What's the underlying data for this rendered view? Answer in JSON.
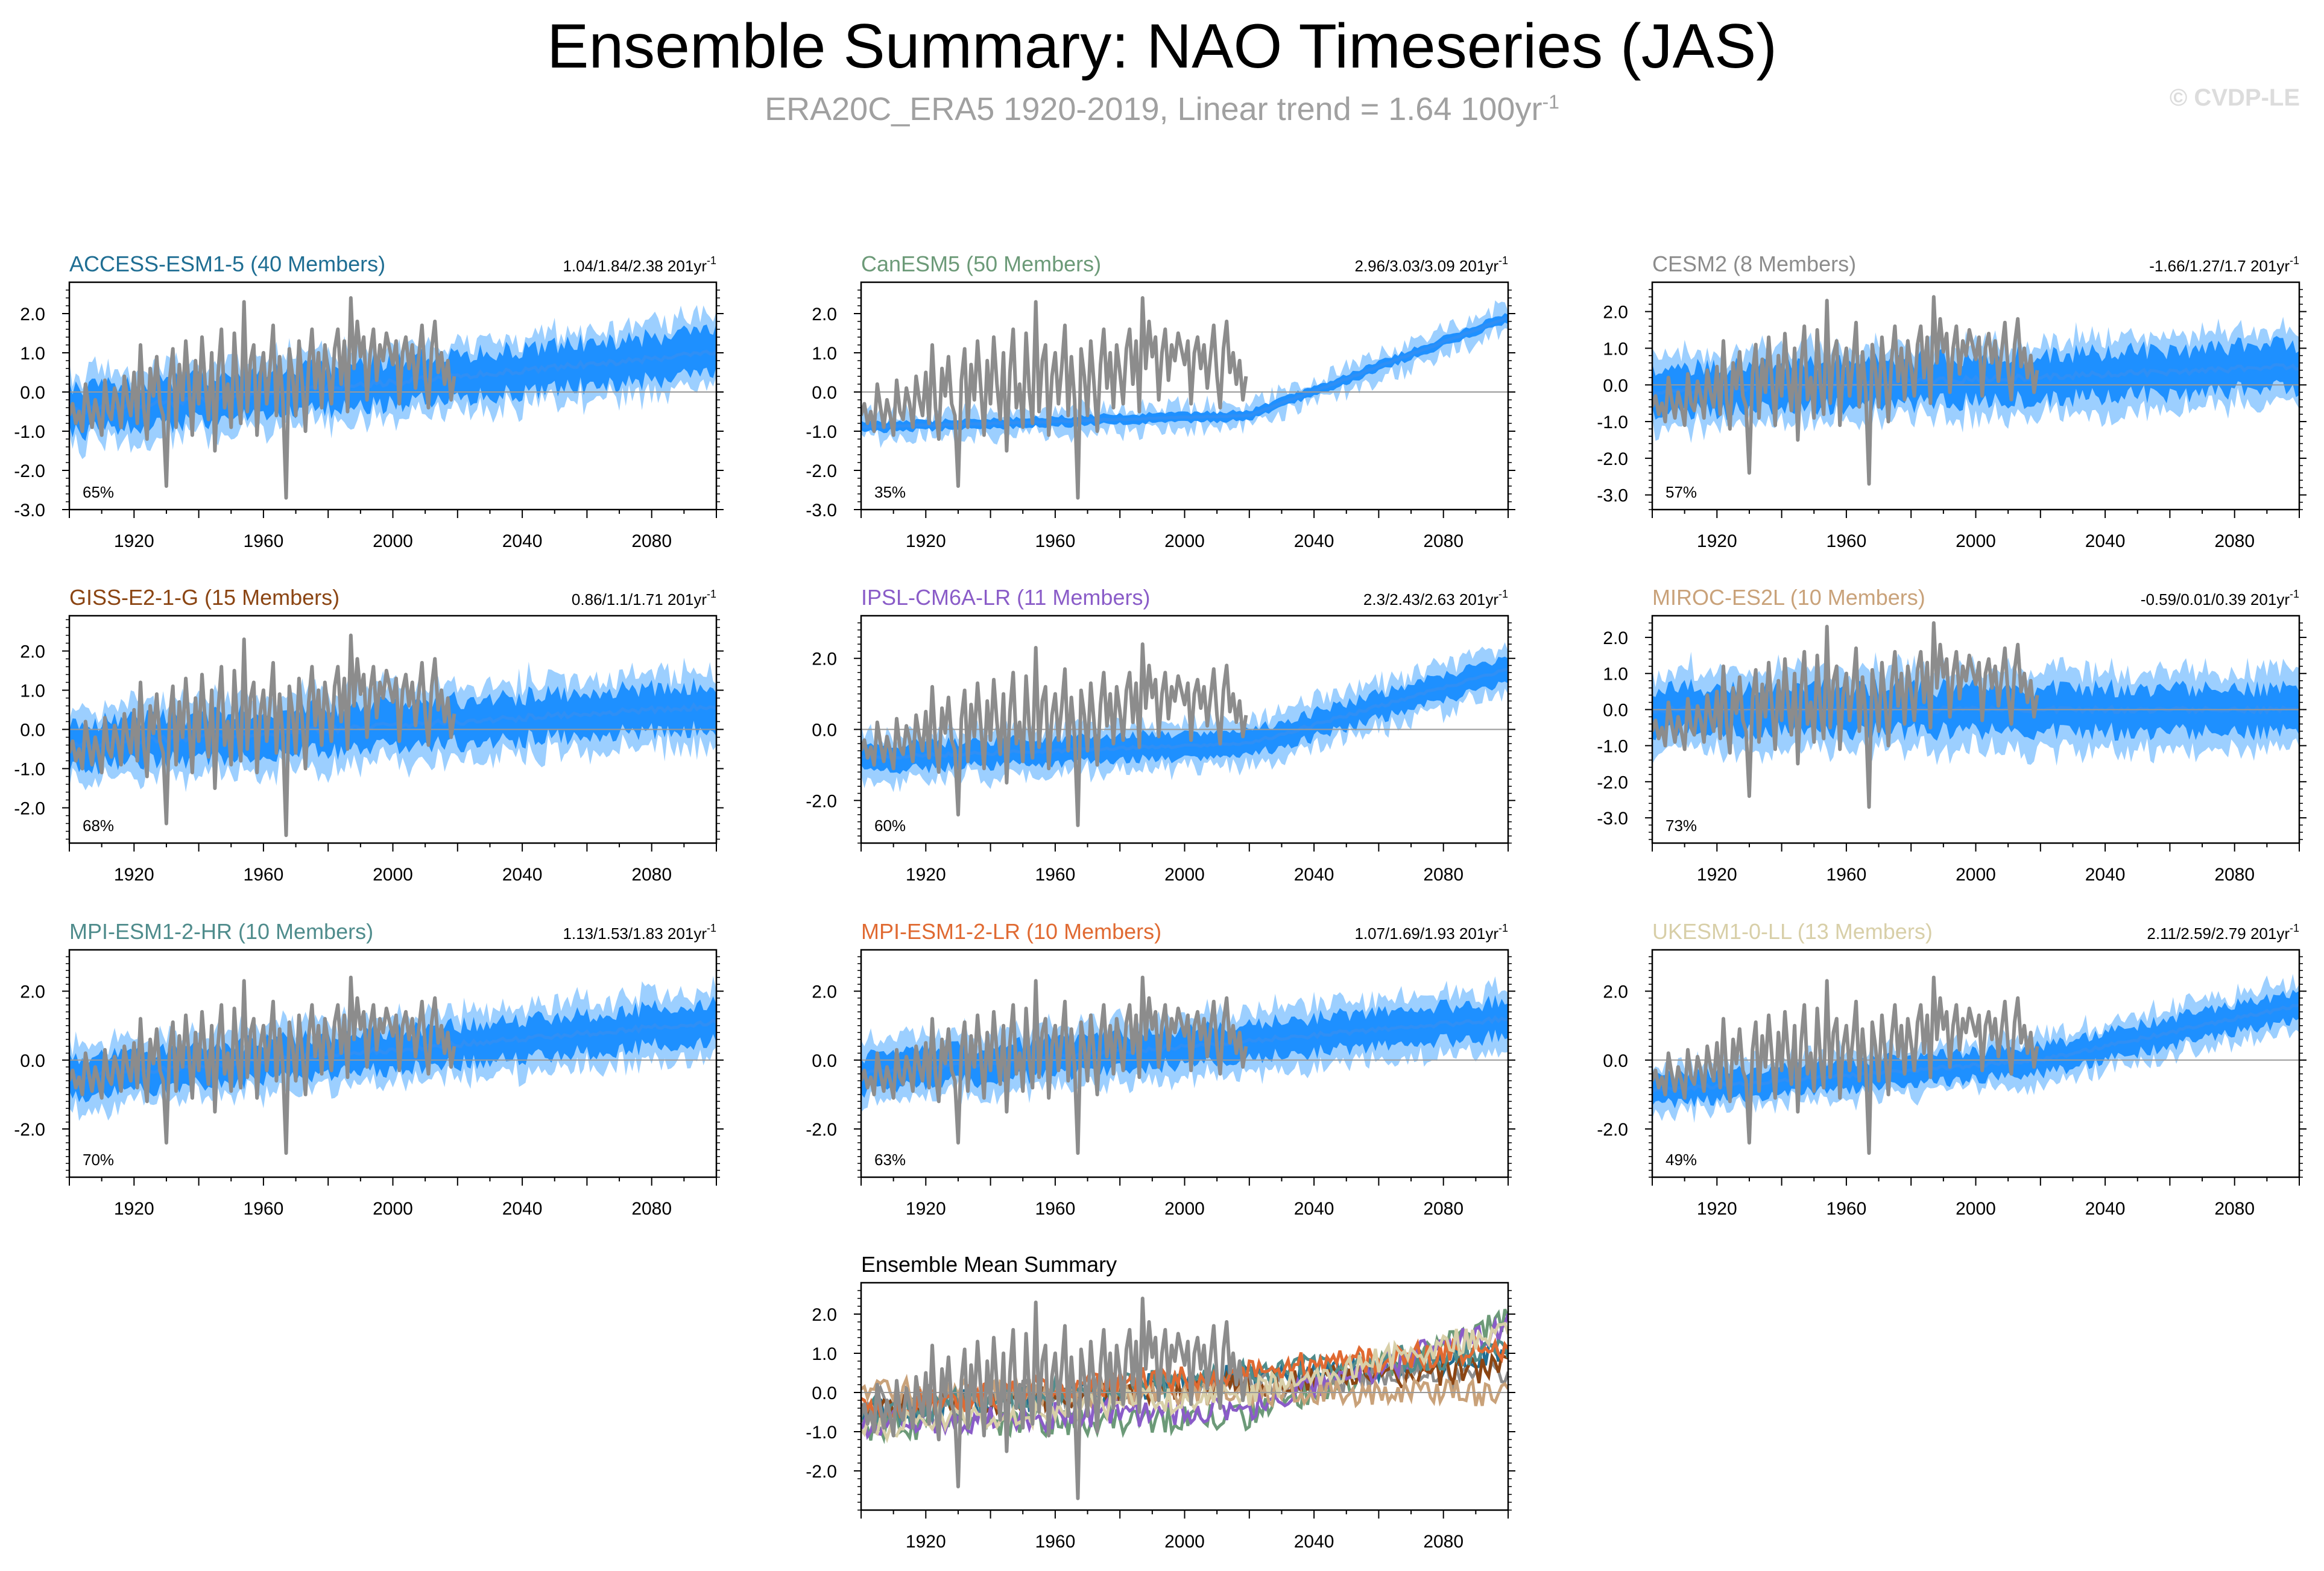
{
  "title": "Ensemble Summary: NAO Timeseries (JAS)",
  "subtitle": {
    "text": "ERA20C_ERA5 1920-2019, Linear trend = 1.64 100yr",
    "sup": "-1"
  },
  "copyright": "© CVDP-LE",
  "colors": {
    "observed": "#8c8c8c",
    "mean_line": "#2f8ff5",
    "inner_band": "#1e90ff",
    "outer_band": "#9ccfff"
  },
  "chart_data": [
    {
      "type": "line",
      "panel": "ACCESS-ESM1-5",
      "title": "ACCESS-ESM1-5 (40 Members)",
      "title_color": "#1f6e93",
      "trend": "1.04/1.84/2.38 201yr",
      "trend_sup": "-1",
      "pct": "65%",
      "xlim": [
        1900,
        2100
      ],
      "ylim": [
        -3.0,
        2.8
      ],
      "xticks": [
        "1920",
        "1960",
        "2000",
        "2040",
        "2080"
      ],
      "yticks": [
        "2.0",
        "1.0",
        "0.0",
        "-1.0",
        "-2.0",
        "-3.0"
      ],
      "x": [
        1900,
        2100
      ],
      "ensemble_mean": [
        -0.5,
        1.0
      ],
      "inner_half_width": 0.55,
      "outer_half_width": 0.9
    },
    {
      "type": "line",
      "panel": "CanESM5",
      "title": "CanESM5 (50 Members)",
      "title_color": "#6c9a78",
      "trend": "2.96/3.03/3.09 201yr",
      "trend_sup": "-1",
      "pct": "35%",
      "xlim": [
        1900,
        2100
      ],
      "ylim": [
        -3.0,
        2.8
      ],
      "xticks": [
        "1920",
        "1960",
        "2000",
        "2040",
        "2080"
      ],
      "yticks": [
        "2.0",
        "1.0",
        "0.0",
        "-1.0",
        "-2.0",
        "-3.0"
      ],
      "x": [
        1900,
        2020,
        2100
      ],
      "ensemble_mean": [
        -0.9,
        -0.6,
        1.9
      ],
      "inner_half_width": 0.12,
      "outer_half_width": 0.3
    },
    {
      "type": "line",
      "panel": "CESM2",
      "title": "CESM2 (8 Members)",
      "title_color": "#8c8c8c",
      "trend": "-1.66/1.27/1.7 201yr",
      "trend_sup": "-1",
      "pct": "57%",
      "xlim": [
        1900,
        2100
      ],
      "ylim": [
        -3.4,
        2.8
      ],
      "xticks": [
        "1920",
        "1960",
        "2000",
        "2040",
        "2080"
      ],
      "yticks": [
        "2.0",
        "1.0",
        "0.0",
        "-1.0",
        "-2.0",
        "-3.0"
      ],
      "x": [
        1900,
        2100
      ],
      "ensemble_mean": [
        -0.2,
        0.5
      ],
      "inner_half_width": 0.6,
      "outer_half_width": 1.0
    },
    {
      "type": "line",
      "panel": "GISS-E2-1-G",
      "title": "GISS-E2-1-G (15 Members)",
      "title_color": "#8b4513",
      "trend": "0.86/1.1/1.71 201yr",
      "trend_sup": "-1",
      "pct": "68%",
      "xlim": [
        1900,
        2100
      ],
      "ylim": [
        -2.9,
        2.9
      ],
      "xticks": [
        "1920",
        "1960",
        "2000",
        "2040",
        "2080"
      ],
      "yticks": [
        "2.0",
        "1.0",
        "0.0",
        "-1.0",
        "-2.0"
      ],
      "x": [
        1900,
        2100
      ],
      "ensemble_mean": [
        -0.4,
        0.6
      ],
      "inner_half_width": 0.55,
      "outer_half_width": 0.95
    },
    {
      "type": "line",
      "panel": "IPSL-CM6A-LR",
      "title": "IPSL-CM6A-LR (11 Members)",
      "title_color": "#8a5cc8",
      "trend": "2.3/2.43/2.63 201yr",
      "trend_sup": "-1",
      "pct": "60%",
      "xlim": [
        1900,
        2100
      ],
      "ylim": [
        -3.2,
        3.2
      ],
      "xticks": [
        "1920",
        "1960",
        "2000",
        "2040",
        "2080"
      ],
      "yticks": [
        "2.0",
        "0.0",
        "-2.0"
      ],
      "x": [
        1900,
        2020,
        2100
      ],
      "ensemble_mean": [
        -0.8,
        -0.4,
        1.7
      ],
      "inner_half_width": 0.35,
      "outer_half_width": 0.65
    },
    {
      "type": "line",
      "panel": "MIROC-ES2L",
      "title": "MIROC-ES2L (10 Members)",
      "title_color": "#c9a27a",
      "trend": "-0.59/0.01/0.39 201yr",
      "trend_sup": "-1",
      "pct": "73%",
      "xlim": [
        1900,
        2100
      ],
      "ylim": [
        -3.7,
        2.6
      ],
      "xticks": [
        "1920",
        "1960",
        "2000",
        "2040",
        "2080"
      ],
      "yticks": [
        "2.0",
        "1.0",
        "0.0",
        "-1.0",
        "-2.0",
        "-3.0"
      ],
      "x": [
        1900,
        2100
      ],
      "ensemble_mean": [
        0.0,
        0.0
      ],
      "inner_half_width": 0.6,
      "outer_half_width": 1.1
    },
    {
      "type": "line",
      "panel": "MPI-ESM1-2-HR",
      "title": "MPI-ESM1-2-HR (10 Members)",
      "title_color": "#4f8c8c",
      "trend": "1.13/1.53/1.83 201yr",
      "trend_sup": "-1",
      "pct": "70%",
      "xlim": [
        1900,
        2100
      ],
      "ylim": [
        -3.4,
        3.2
      ],
      "xticks": [
        "1920",
        "1960",
        "2000",
        "2040",
        "2080"
      ],
      "yticks": [
        "2.0",
        "0.0",
        "-2.0"
      ],
      "x": [
        1900,
        2100
      ],
      "ensemble_mean": [
        -0.5,
        1.1
      ],
      "inner_half_width": 0.55,
      "outer_half_width": 0.95
    },
    {
      "type": "line",
      "panel": "MPI-ESM1-2-LR",
      "title": "MPI-ESM1-2-LR (10 Members)",
      "title_color": "#e06a32",
      "trend": "1.07/1.69/1.93 201yr",
      "trend_sup": "-1",
      "pct": "63%",
      "xlim": [
        1900,
        2100
      ],
      "ylim": [
        -3.4,
        3.2
      ],
      "xticks": [
        "1920",
        "1960",
        "2000",
        "2040",
        "2080"
      ],
      "yticks": [
        "2.0",
        "0.0",
        "-2.0"
      ],
      "x": [
        1900,
        2100
      ],
      "ensemble_mean": [
        -0.4,
        1.2
      ],
      "inner_half_width": 0.5,
      "outer_half_width": 0.9
    },
    {
      "type": "line",
      "panel": "UKESM1-0-LL",
      "title": "UKESM1-0-LL (13 Members)",
      "title_color": "#d8cfa8",
      "trend": "2.11/2.59/2.79 201yr",
      "trend_sup": "-1",
      "pct": "49%",
      "xlim": [
        1900,
        2100
      ],
      "ylim": [
        -3.4,
        3.2
      ],
      "xticks": [
        "1920",
        "1960",
        "2000",
        "2040",
        "2080"
      ],
      "yticks": [
        "2.0",
        "0.0",
        "-2.0"
      ],
      "x": [
        1900,
        2020,
        2100
      ],
      "ensemble_mean": [
        -0.9,
        0.0,
        1.6
      ],
      "inner_half_width": 0.4,
      "outer_half_width": 0.7
    },
    {
      "type": "line",
      "panel": "Ensemble Mean Summary",
      "title": "Ensemble Mean Summary",
      "title_color": "#000000",
      "xlim": [
        1900,
        2100
      ],
      "ylim": [
        -3.0,
        2.8
      ],
      "xticks": [
        "1920",
        "1960",
        "2000",
        "2040",
        "2080"
      ],
      "yticks": [
        "2.0",
        "1.0",
        "0.0",
        "-1.0",
        "-2.0"
      ],
      "mean_series": [
        {
          "name": "ACCESS-ESM1-5",
          "color": "#1f6e93",
          "x": [
            1900,
            2100
          ],
          "y": [
            -0.5,
            1.0
          ]
        },
        {
          "name": "CanESM5",
          "color": "#6c9a78",
          "x": [
            1900,
            2020,
            2100
          ],
          "y": [
            -0.9,
            -0.6,
            1.9
          ]
        },
        {
          "name": "CESM2",
          "color": "#8c8c8c",
          "x": [
            1900,
            2100
          ],
          "y": [
            -0.2,
            0.5
          ]
        },
        {
          "name": "GISS-E2-1-G",
          "color": "#8b4513",
          "x": [
            1900,
            2100
          ],
          "y": [
            -0.4,
            0.6
          ]
        },
        {
          "name": "IPSL-CM6A-LR",
          "color": "#8a5cc8",
          "x": [
            1900,
            2020,
            2100
          ],
          "y": [
            -0.8,
            -0.4,
            1.7
          ]
        },
        {
          "name": "MIROC-ES2L",
          "color": "#c9a27a",
          "x": [
            1900,
            2100
          ],
          "y": [
            0.0,
            0.0
          ]
        },
        {
          "name": "MPI-ESM1-2-HR",
          "color": "#4f8c8c",
          "x": [
            1900,
            2100
          ],
          "y": [
            -0.5,
            1.1
          ]
        },
        {
          "name": "MPI-ESM1-2-LR",
          "color": "#e06a32",
          "x": [
            1900,
            2100
          ],
          "y": [
            -0.4,
            1.2
          ]
        },
        {
          "name": "UKESM1-0-LL",
          "color": "#d8cfa8",
          "x": [
            1900,
            2020,
            2100
          ],
          "y": [
            -0.9,
            0.0,
            1.6
          ]
        }
      ]
    }
  ],
  "observed": {
    "name": "ERA20C_ERA5",
    "x_start": 1900,
    "values": [
      -0.6,
      -0.3,
      -0.8,
      -0.5,
      -1.0,
      0.2,
      -0.4,
      -0.9,
      -0.2,
      -0.6,
      -1.1,
      0.3,
      -0.5,
      -0.7,
      0.1,
      -0.3,
      -0.9,
      0.4,
      -0.2,
      -0.6,
      0.5,
      -0.8,
      1.2,
      -0.4,
      -1.2,
      0.6,
      -0.1,
      0.9,
      -0.3,
      -0.6,
      -2.4,
      0.3,
      1.1,
      -0.9,
      0.7,
      -0.2,
      1.3,
      0.1,
      -1.1,
      0.8,
      -0.3,
      1.4,
      0.2,
      -0.7,
      1.0,
      -1.5,
      0.5,
      1.6,
      -0.4,
      0.2,
      -0.9,
      1.5,
      0.0,
      -0.8,
      2.3,
      -0.5,
      0.8,
      1.2,
      -1.1,
      0.4,
      1.0,
      -0.3,
      0.6,
      1.7,
      -0.6,
      0.9,
      -0.2,
      -2.7,
      1.1,
      0.4,
      -0.6,
      1.3,
      0.2,
      -1.0,
      0.7,
      1.6,
      0.1,
      1.0,
      -0.4,
      1.2,
      0.5,
      -0.3,
      1.1,
      1.6,
      0.2,
      1.3,
      -0.5,
      2.4,
      0.6,
      1.8,
      0.9,
      1.4,
      -0.2,
      1.0,
      1.6,
      0.3,
      1.2,
      0.8,
      1.5,
      1.1,
      0.7,
      1.3,
      -0.3,
      1.0,
      1.4,
      0.6,
      1.2,
      0.1,
      0.9,
      1.7,
      0.4,
      -0.4,
      1.1,
      1.8,
      0.5,
      1.0,
      0.2,
      0.8,
      -0.2,
      0.4
    ]
  }
}
